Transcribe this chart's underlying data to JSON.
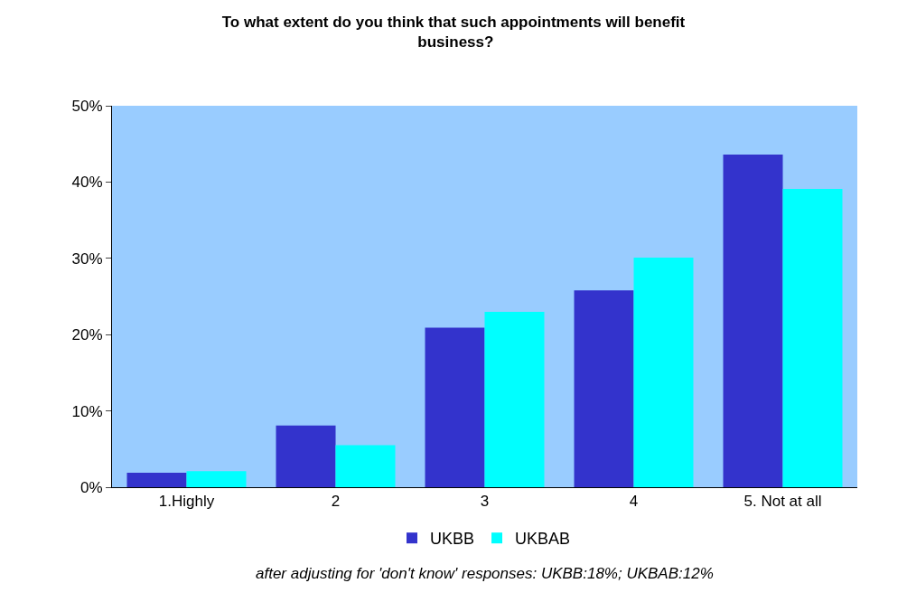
{
  "chart_data": {
    "type": "bar",
    "title": "To what extent do you think that such appointments will benefit business?",
    "categories": [
      "1.Highly",
      "2",
      "3",
      "4",
      "5. Not at all"
    ],
    "series": [
      {
        "name": "UKBB",
        "color": "#3333cc",
        "values": [
          1.9,
          8.1,
          20.9,
          25.8,
          43.6
        ]
      },
      {
        "name": "UKBAB",
        "color": "#00ffff",
        "values": [
          2.1,
          5.5,
          23.0,
          30.1,
          39.1
        ]
      }
    ],
    "ylim": [
      0,
      50
    ],
    "yticks": [
      {
        "value": 0,
        "label": "0%"
      },
      {
        "value": 10,
        "label": "10%"
      },
      {
        "value": 20,
        "label": "20%"
      },
      {
        "value": 30,
        "label": "30%"
      },
      {
        "value": 40,
        "label": "40%"
      },
      {
        "value": 50,
        "label": "50%"
      }
    ],
    "grid": false,
    "legend": "bottom",
    "annotations": [
      "after adjusting for 'don't know' responses: UKBB:18%; UKBAB:12%"
    ]
  }
}
